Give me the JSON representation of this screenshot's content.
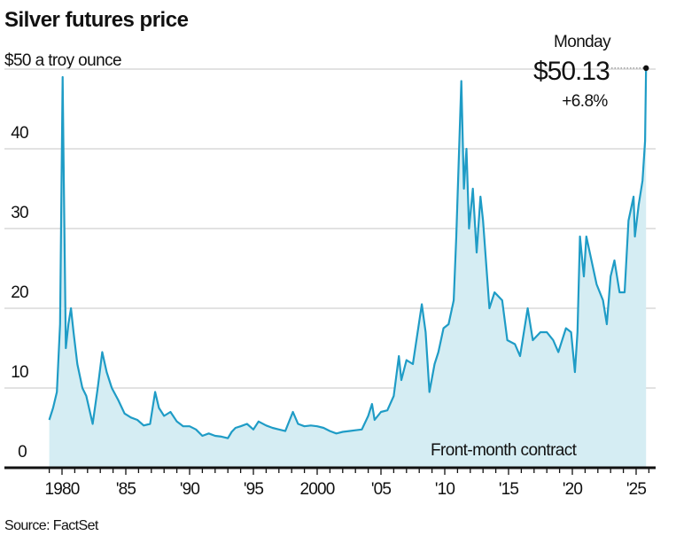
{
  "chart_data": {
    "type": "area",
    "title": "Silver futures price",
    "subtitle": "$50 a troy ounce",
    "ylabel": "$ a troy ounce",
    "xlabel": "",
    "ylim": [
      0,
      50
    ],
    "xlim": [
      1978.9,
      2026
    ],
    "grid": true,
    "yticks": [
      {
        "v": 0,
        "label": "0"
      },
      {
        "v": 10,
        "label": "10"
      },
      {
        "v": 20,
        "label": "20"
      },
      {
        "v": 30,
        "label": "30"
      },
      {
        "v": 40,
        "label": "40"
      }
    ],
    "xticks": [
      {
        "v": 1980,
        "label": "1980"
      },
      {
        "v": 1985,
        "label": "'85"
      },
      {
        "v": 1990,
        "label": "'90"
      },
      {
        "v": 1995,
        "label": "'95"
      },
      {
        "v": 2000,
        "label": "2000"
      },
      {
        "v": 2005,
        "label": "'05"
      },
      {
        "v": 2010,
        "label": "'10"
      },
      {
        "v": 2015,
        "label": "'15"
      },
      {
        "v": 2020,
        "label": "'20"
      },
      {
        "v": 2025,
        "label": "'25"
      }
    ],
    "series": [
      {
        "name": "Front-month contract",
        "color": "#1f9cc6",
        "fill": "#d5edf3",
        "points": [
          [
            1979.0,
            6
          ],
          [
            1979.3,
            7.5
          ],
          [
            1979.6,
            9.5
          ],
          [
            1979.85,
            18
          ],
          [
            1980.05,
            49
          ],
          [
            1980.12,
            39
          ],
          [
            1980.3,
            15
          ],
          [
            1980.5,
            18
          ],
          [
            1980.7,
            20
          ],
          [
            1980.9,
            17
          ],
          [
            1981.2,
            13
          ],
          [
            1981.6,
            10
          ],
          [
            1981.9,
            9
          ],
          [
            1982.4,
            5.5
          ],
          [
            1982.8,
            10
          ],
          [
            1983.15,
            14.5
          ],
          [
            1983.5,
            12
          ],
          [
            1983.9,
            10
          ],
          [
            1984.4,
            8.5
          ],
          [
            1984.9,
            6.8
          ],
          [
            1985.4,
            6.3
          ],
          [
            1985.9,
            6
          ],
          [
            1986.4,
            5.3
          ],
          [
            1986.9,
            5.5
          ],
          [
            1987.3,
            9.5
          ],
          [
            1987.6,
            7.5
          ],
          [
            1988,
            6.5
          ],
          [
            1988.5,
            7
          ],
          [
            1989,
            5.8
          ],
          [
            1989.5,
            5.2
          ],
          [
            1990,
            5.2
          ],
          [
            1990.5,
            4.8
          ],
          [
            1991,
            4
          ],
          [
            1991.5,
            4.3
          ],
          [
            1992,
            4
          ],
          [
            1992.5,
            3.9
          ],
          [
            1993,
            3.7
          ],
          [
            1993.3,
            4.5
          ],
          [
            1993.6,
            5
          ],
          [
            1994,
            5.2
          ],
          [
            1994.5,
            5.5
          ],
          [
            1995,
            4.8
          ],
          [
            1995.4,
            5.8
          ],
          [
            1996,
            5.3
          ],
          [
            1996.5,
            5
          ],
          [
            1997,
            4.8
          ],
          [
            1997.5,
            4.6
          ],
          [
            1998.1,
            7
          ],
          [
            1998.5,
            5.5
          ],
          [
            1999,
            5.2
          ],
          [
            1999.5,
            5.3
          ],
          [
            2000,
            5.2
          ],
          [
            2000.5,
            5
          ],
          [
            2001,
            4.6
          ],
          [
            2001.5,
            4.3
          ],
          [
            2002,
            4.5
          ],
          [
            2002.5,
            4.6
          ],
          [
            2003,
            4.7
          ],
          [
            2003.5,
            4.8
          ],
          [
            2004,
            6.5
          ],
          [
            2004.3,
            8
          ],
          [
            2004.5,
            6
          ],
          [
            2005,
            7
          ],
          [
            2005.5,
            7.2
          ],
          [
            2006,
            9
          ],
          [
            2006.4,
            14
          ],
          [
            2006.6,
            11
          ],
          [
            2007,
            13.5
          ],
          [
            2007.5,
            13
          ],
          [
            2008.2,
            20.5
          ],
          [
            2008.5,
            17
          ],
          [
            2008.8,
            9.5
          ],
          [
            2009.2,
            13
          ],
          [
            2009.5,
            14.5
          ],
          [
            2009.9,
            17.5
          ],
          [
            2010.3,
            18
          ],
          [
            2010.7,
            21
          ],
          [
            2010.9,
            29
          ],
          [
            2011.3,
            48.5
          ],
          [
            2011.5,
            35
          ],
          [
            2011.7,
            40
          ],
          [
            2011.9,
            30
          ],
          [
            2012.2,
            35
          ],
          [
            2012.5,
            27
          ],
          [
            2012.8,
            34
          ],
          [
            2013,
            31
          ],
          [
            2013.5,
            20
          ],
          [
            2013.9,
            22
          ],
          [
            2014.5,
            21
          ],
          [
            2014.9,
            16
          ],
          [
            2015.5,
            15.5
          ],
          [
            2015.9,
            14
          ],
          [
            2016.5,
            20
          ],
          [
            2016.9,
            16
          ],
          [
            2017.5,
            17
          ],
          [
            2018,
            17
          ],
          [
            2018.5,
            16
          ],
          [
            2018.9,
            14.5
          ],
          [
            2019.5,
            17.5
          ],
          [
            2019.9,
            17
          ],
          [
            2020.2,
            12
          ],
          [
            2020.4,
            17
          ],
          [
            2020.6,
            29
          ],
          [
            2020.9,
            24
          ],
          [
            2021.1,
            29
          ],
          [
            2021.5,
            26
          ],
          [
            2021.9,
            23
          ],
          [
            2022.4,
            21
          ],
          [
            2022.7,
            18
          ],
          [
            2023,
            24
          ],
          [
            2023.3,
            26
          ],
          [
            2023.7,
            22
          ],
          [
            2024.1,
            22
          ],
          [
            2024.4,
            31
          ],
          [
            2024.8,
            34
          ],
          [
            2024.9,
            29
          ],
          [
            2025.2,
            33
          ],
          [
            2025.5,
            36
          ],
          [
            2025.7,
            41
          ],
          [
            2025.78,
            50.13
          ]
        ]
      }
    ],
    "annotations": {
      "series_label": "Front-month contract",
      "last_day": "Monday",
      "last_value": "$50.13",
      "last_change": "+6.8%"
    },
    "source": "Source: FactSet"
  }
}
